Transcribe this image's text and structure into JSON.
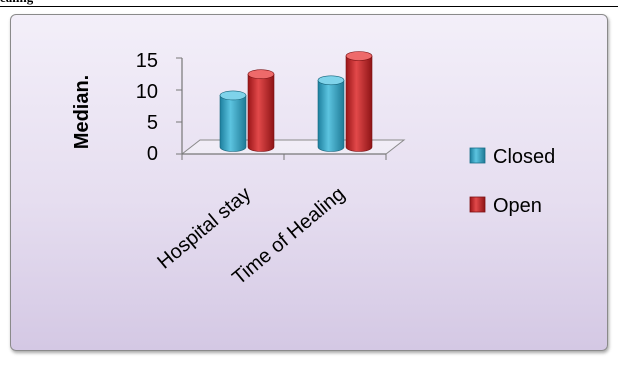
{
  "page": {
    "top_text": "ealing"
  },
  "chart_data": {
    "type": "bar",
    "title": "",
    "xlabel": "",
    "ylabel": "Median.",
    "ylim": [
      0,
      15
    ],
    "yticks": [
      0,
      5,
      10,
      15
    ],
    "grid": false,
    "legend_position": "right",
    "categories": [
      "Hospital stay",
      "Time of Healing"
    ],
    "series": [
      {
        "name": "Closed",
        "values": [
          8.5,
          11
        ],
        "color": "#35a3c4"
      },
      {
        "name": "Open",
        "values": [
          12,
          15
        ],
        "color": "#c8282a"
      }
    ]
  }
}
